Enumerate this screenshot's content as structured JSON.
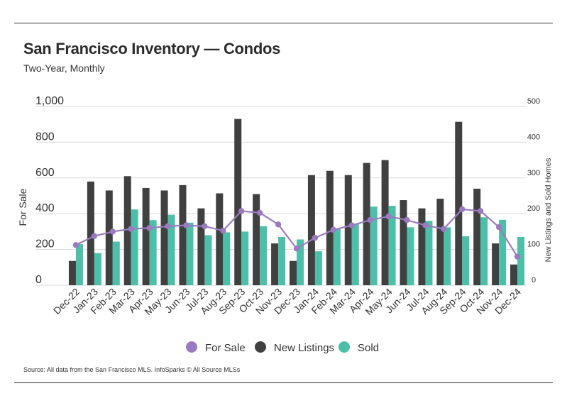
{
  "header": {
    "title": "San Francisco Inventory — Condos",
    "subtitle": "Two-Year, Monthly"
  },
  "footer": {
    "source": "Source:  All data from the San Francisco MLS. InfoSparks © All Source MLSs"
  },
  "colors": {
    "for_sale": "#9b7bbf",
    "new_listings": "#404040",
    "sold": "#4dbfa8",
    "grid": "#d9d9d9"
  },
  "chart_data": {
    "type": "bar",
    "categories": [
      "Dec-22",
      "Jan-23",
      "Feb-23",
      "Mar-23",
      "Apr-23",
      "May-23",
      "Jun-23",
      "Jul-23",
      "Aug-23",
      "Sep-23",
      "Oct-23",
      "Nov-23",
      "Dec-23",
      "Jan-24",
      "Feb-24",
      "Mar-24",
      "Apr-24",
      "May-24",
      "Jun-24",
      "Jul-24",
      "Aug-24",
      "Sep-24",
      "Oct-24",
      "Nov-24",
      "Dec-24"
    ],
    "series": [
      {
        "name": "For Sale",
        "type": "line",
        "axis": "left",
        "values": [
          225,
          275,
          300,
          315,
          320,
          330,
          335,
          330,
          305,
          415,
          405,
          340,
          205,
          265,
          310,
          335,
          365,
          385,
          365,
          335,
          315,
          425,
          415,
          325,
          160
        ]
      },
      {
        "name": "New Listings",
        "type": "bar",
        "axis": "right",
        "values": [
          68,
          290,
          265,
          305,
          272,
          265,
          280,
          215,
          257,
          465,
          255,
          117,
          68,
          308,
          320,
          308,
          342,
          350,
          238,
          215,
          242,
          457,
          270,
          117,
          58
        ]
      },
      {
        "name": "Sold",
        "type": "bar",
        "axis": "right",
        "values": [
          115,
          90,
          122,
          212,
          182,
          197,
          175,
          140,
          148,
          150,
          165,
          135,
          128,
          95,
          157,
          172,
          220,
          222,
          162,
          180,
          162,
          137,
          190,
          183,
          135
        ]
      }
    ],
    "y_left": {
      "label": "For Sale",
      "range": [
        0,
        1000
      ],
      "ticks": [
        "0",
        "200",
        "400",
        "600",
        "800",
        "1,000"
      ],
      "tick_values": [
        0,
        200,
        400,
        600,
        800,
        1000
      ]
    },
    "y_right": {
      "label": "New Listings and Sold Homes",
      "range": [
        0,
        500
      ],
      "ticks": [
        "0",
        "100",
        "200",
        "300",
        "400",
        "500"
      ],
      "tick_values": [
        0,
        100,
        200,
        300,
        400,
        500
      ]
    },
    "legend": {
      "position": "bottom",
      "entries": [
        "For Sale",
        "New Listings",
        "Sold"
      ]
    },
    "grid": true
  }
}
